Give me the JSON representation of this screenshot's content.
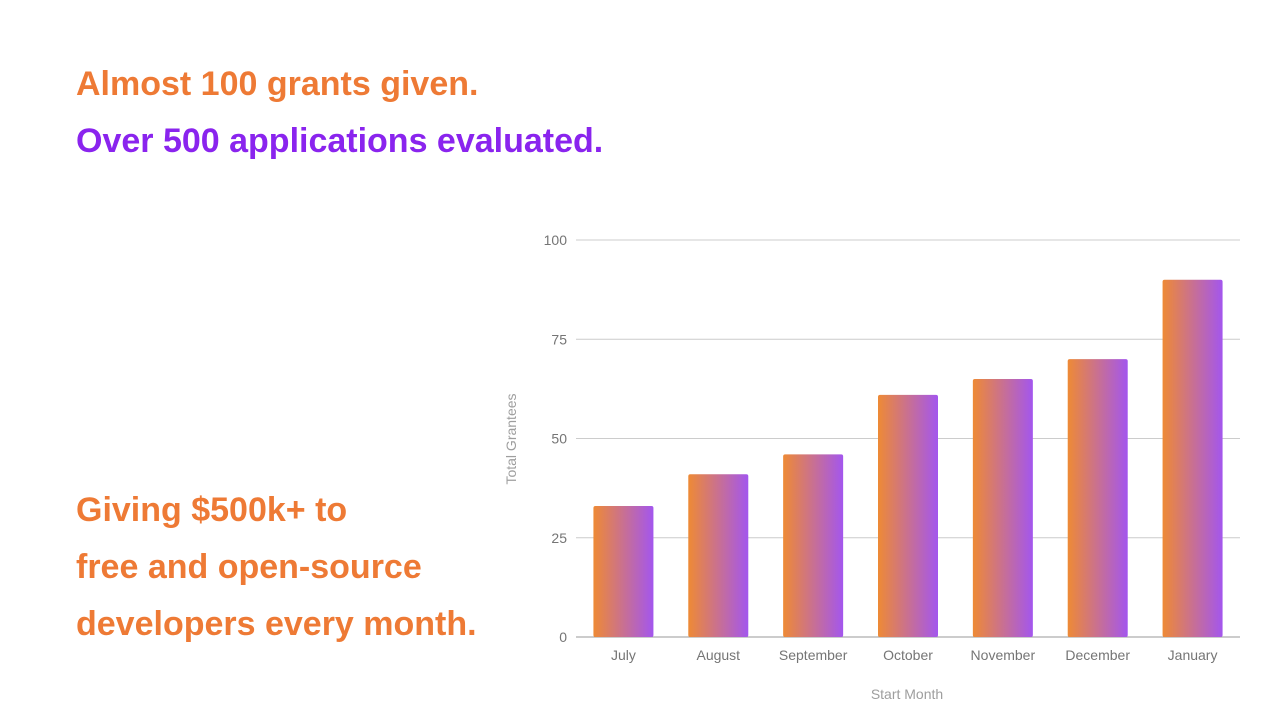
{
  "headlines": {
    "grants": "Almost 100 grants given.",
    "applications": "Over 500 applications evaluated."
  },
  "claim": {
    "line1": "Giving $500k+ to",
    "line2": "free and open-source",
    "line3": "developers every month."
  },
  "colors": {
    "orange": "#ee7a35",
    "purple": "#8a24ee",
    "bar_gradient_start": "#ee8a35",
    "bar_gradient_end": "#a356ee",
    "grid": "#cccccc"
  },
  "chart_data": {
    "type": "bar",
    "categories": [
      "July",
      "August",
      "September",
      "October",
      "November",
      "December",
      "January"
    ],
    "values": [
      33,
      41,
      46,
      61,
      65,
      70,
      90
    ],
    "title": "",
    "xlabel": "Start Month",
    "ylabel": "Total Grantees",
    "ylim": [
      0,
      100
    ],
    "yticks": [
      0,
      25,
      50,
      75,
      100
    ],
    "grid": true,
    "legend": "none"
  }
}
